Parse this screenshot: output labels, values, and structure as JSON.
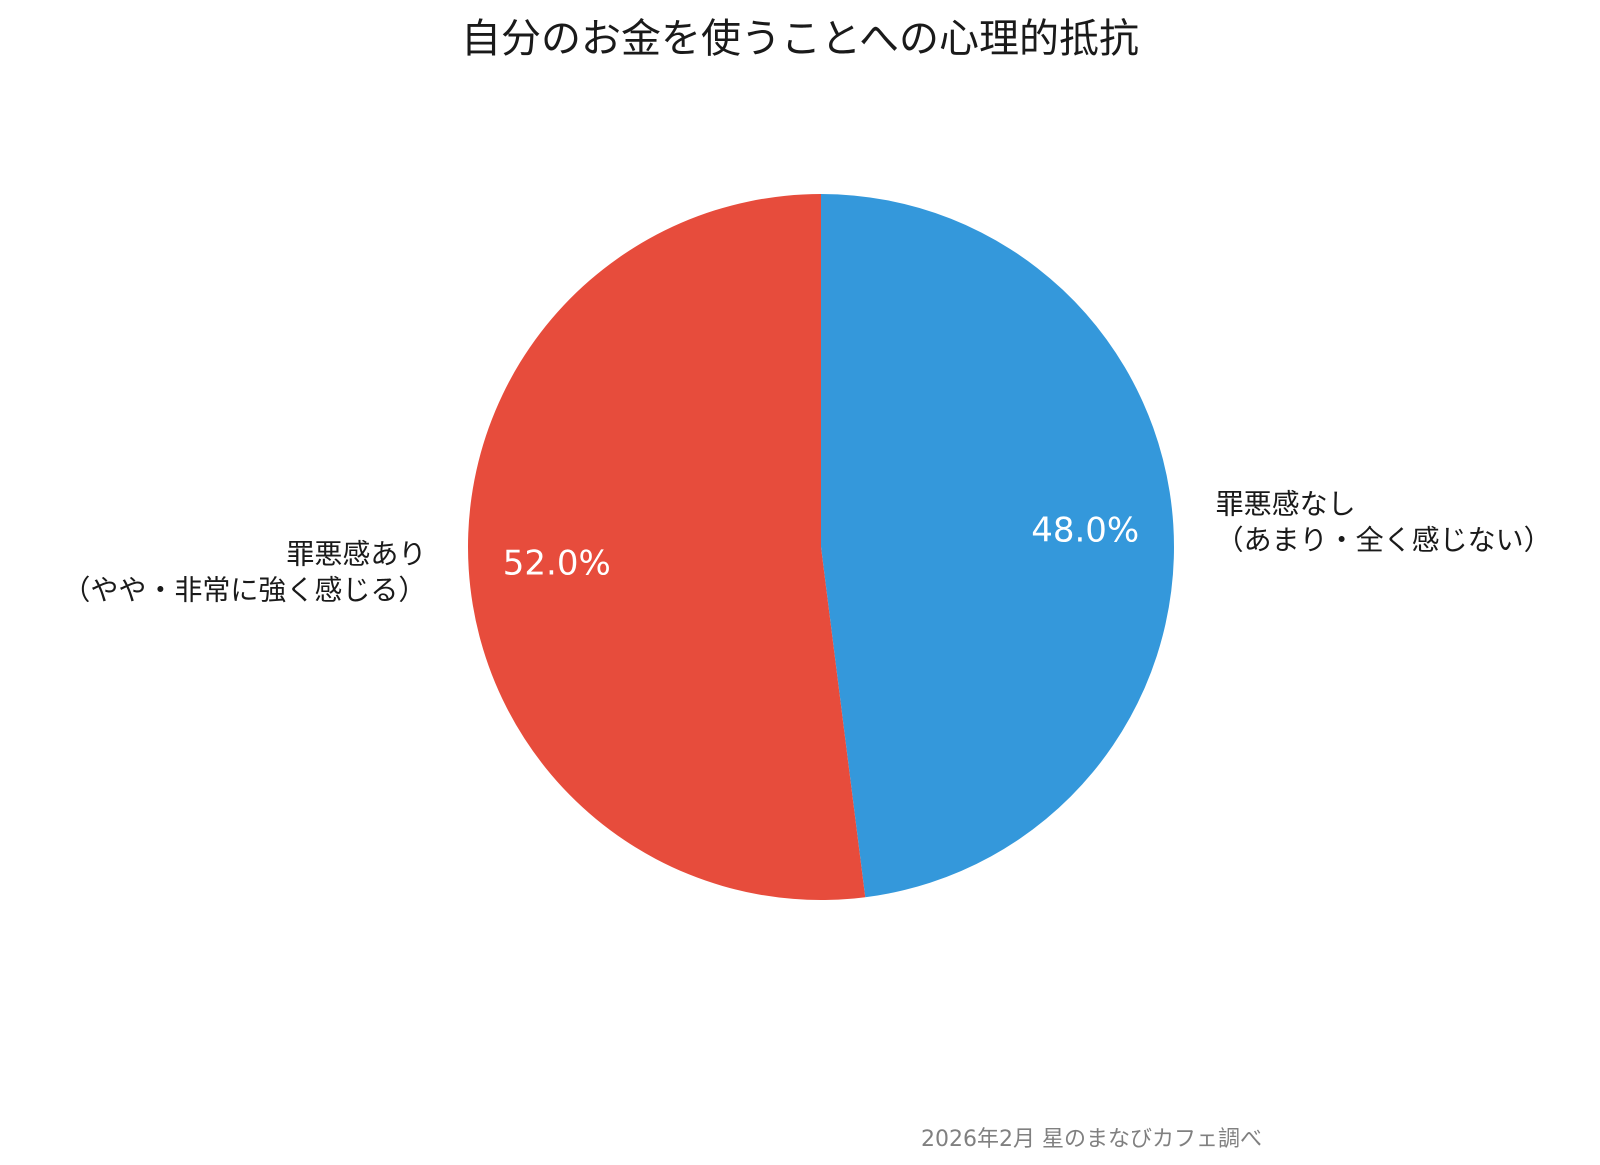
{
  "chart_data": {
    "type": "pie",
    "title": "自分のお金を使うことへの心理的抵抗",
    "slices": [
      {
        "label_lines": [
          "罪悪感なし",
          "（あまり・全く感じない）"
        ],
        "value": 48.0,
        "pct_label": "48.0%",
        "color": "#3498db"
      },
      {
        "label_lines": [
          "罪悪感あり",
          "（やや・非常に強く感じる）"
        ],
        "value": 52.0,
        "pct_label": "52.0%",
        "color": "#e74c3c"
      }
    ],
    "start": "12 o'clock",
    "direction": "clockwise",
    "source": "2026年2月 星のまなびカフェ調べ"
  }
}
